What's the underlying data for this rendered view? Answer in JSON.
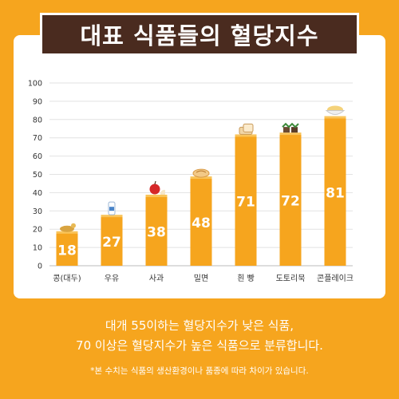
{
  "title": "대표 식품들의 혈당지수",
  "chart_data": {
    "type": "bar",
    "categories": [
      "콩(대두)",
      "우유",
      "사과",
      "밀면",
      "흰 빵",
      "도토리묵",
      "콘플레이크"
    ],
    "values": [
      18,
      27,
      38,
      48,
      71,
      72,
      81
    ],
    "ylim": [
      0,
      100
    ],
    "yticks": [
      0,
      10,
      20,
      30,
      40,
      50,
      60,
      70,
      80,
      90,
      100
    ],
    "grid": true,
    "xlabel": "",
    "ylabel": ""
  },
  "colors": {
    "background": "#F6A51E",
    "bar": "#F6A51E",
    "title_box": "#4A2B1F",
    "text": "#333333"
  },
  "food_icons": [
    "soybean-icon",
    "milk-bottle-icon",
    "apple-icon",
    "noodle-bowl-icon",
    "bread-icon",
    "acorn-jelly-icon",
    "cornflakes-bowl-icon"
  ],
  "footer": {
    "line1": "대개 55이하는 혈당지수가 낮은 식품,",
    "line2": "70 이상은 혈당지수가 높은 식품으로 분류합니다.",
    "note": "*본 수치는 식품의 생산환경이나 품종에 따라 차이가 있습니다."
  }
}
